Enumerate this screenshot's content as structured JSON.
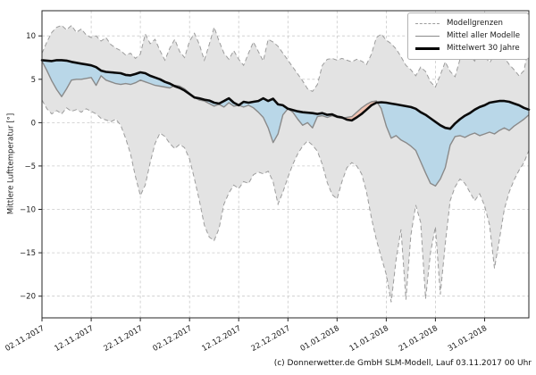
{
  "caption": "(c) Donnerwetter.de GmbH SLM-Modell, Lauf 03.11.2017 00 Uhr",
  "chart_data": {
    "type": "line",
    "title": "",
    "xlabel": "",
    "ylabel": "Mittlere Lufttemperatur [°]",
    "ylim": [
      -22.5,
      12.9
    ],
    "grid": true,
    "legend": {
      "position": "top-right",
      "entries": [
        {
          "label": "Modellgrenzen",
          "style": "dashed",
          "color": "#9c9c9c"
        },
        {
          "label": "Mittel aller Modelle",
          "style": "solid",
          "color": "#8a8a8a"
        },
        {
          "label": "Mittelwert 30 Jahre",
          "style": "bold",
          "color": "#000000"
        }
      ]
    },
    "colors": {
      "band_fill": "#e3e3e3",
      "band_edge": "#9c9c9c",
      "colder_fill": "#b9d7e8",
      "warmer_fill": "#f2c3b2",
      "mean_line": "#8a8a8a",
      "normal_line": "#0a0a0a",
      "grid": "#c9c9c9",
      "frame": "#262626",
      "text": "#1a1a1a"
    },
    "yticks": [
      {
        "value": 10,
        "label": "10"
      },
      {
        "value": 5,
        "label": "5"
      },
      {
        "value": 0,
        "label": "0"
      },
      {
        "value": -5,
        "label": "−5"
      },
      {
        "value": -10,
        "label": "−10"
      },
      {
        "value": -15,
        "label": "−15"
      },
      {
        "value": -20,
        "label": "−20"
      }
    ],
    "xticks": [
      {
        "day": 0,
        "label": "02.11.2017"
      },
      {
        "day": 10,
        "label": "12.11.2017"
      },
      {
        "day": 20,
        "label": "22.11.2017"
      },
      {
        "day": 30,
        "label": "02.12.2017"
      },
      {
        "day": 40,
        "label": "12.12.2017"
      },
      {
        "day": 50,
        "label": "22.12.2017"
      },
      {
        "day": 60,
        "label": "01.01.2018"
      },
      {
        "day": 70,
        "label": "11.01.2018"
      },
      {
        "day": 80,
        "label": "21.01.2018"
      },
      {
        "day": 90,
        "label": "31.01.2018"
      }
    ],
    "series": [
      {
        "name": "Modellgrenzen (oberes Limit)",
        "values": [
          8.0,
          9.3,
          10.4,
          11.0,
          11.2,
          10.7,
          11.2,
          10.4,
          10.8,
          10.1,
          9.8,
          10.0,
          9.4,
          9.8,
          9.0,
          8.6,
          8.3,
          7.8,
          8.0,
          7.4,
          7.9,
          10.2,
          9.1,
          9.6,
          8.3,
          7.2,
          8.6,
          9.6,
          8.2,
          7.5,
          9.4,
          10.3,
          9.0,
          7.2,
          9.0,
          11.0,
          9.4,
          8.0,
          7.3,
          8.3,
          7.3,
          6.6,
          8.0,
          9.3,
          8.2,
          7.1,
          9.6,
          9.3,
          8.8,
          8.0,
          7.2,
          6.4,
          5.6,
          4.8,
          3.9,
          3.6,
          4.4,
          6.6,
          7.3,
          7.4,
          7.2,
          7.4,
          7.2,
          7.0,
          7.3,
          7.1,
          6.7,
          7.9,
          9.8,
          10.2,
          9.5,
          9.1,
          8.5,
          7.6,
          6.6,
          6.1,
          5.4,
          6.4,
          5.9,
          4.7,
          4.1,
          5.5,
          7.0,
          5.9,
          5.3,
          7.3,
          8.5,
          7.7,
          7.1,
          8.7,
          7.7,
          6.9,
          7.8,
          8.4,
          7.5,
          6.7,
          6.1,
          5.4,
          6.0,
          8.8
        ]
      },
      {
        "name": "Mittel aller Modelle",
        "values": [
          7.1,
          6.0,
          4.8,
          3.8,
          3.0,
          3.9,
          4.9,
          5.0,
          5.0,
          5.1,
          5.2,
          4.3,
          5.4,
          4.9,
          4.7,
          4.5,
          4.4,
          4.5,
          4.4,
          4.6,
          4.9,
          4.7,
          4.5,
          4.3,
          4.2,
          4.1,
          4.0,
          4.3,
          4.2,
          3.9,
          3.4,
          2.9,
          2.6,
          2.5,
          2.2,
          1.9,
          2.1,
          1.8,
          2.3,
          1.9,
          2.0,
          1.8,
          2.0,
          1.7,
          1.2,
          0.6,
          -0.6,
          -2.3,
          -1.3,
          0.9,
          1.6,
          1.2,
          0.4,
          -0.3,
          0.0,
          -0.6,
          0.7,
          0.8,
          0.6,
          0.8,
          0.6,
          0.5,
          0.6,
          0.7,
          1.2,
          1.7,
          2.1,
          2.4,
          2.5,
          1.6,
          -0.4,
          -1.8,
          -1.5,
          -2.0,
          -2.3,
          -2.7,
          -3.2,
          -4.5,
          -5.8,
          -7.0,
          -7.3,
          -6.5,
          -5.2,
          -2.6,
          -1.6,
          -1.5,
          -1.7,
          -1.4,
          -1.2,
          -1.5,
          -1.3,
          -1.1,
          -1.3,
          -0.9,
          -0.6,
          -0.9,
          -0.4,
          0.0,
          0.4,
          0.9
        ]
      },
      {
        "name": "Mittelwert 30 Jahre",
        "values": [
          7.2,
          7.15,
          7.1,
          7.2,
          7.2,
          7.15,
          7.0,
          6.9,
          6.8,
          6.7,
          6.6,
          6.4,
          6.0,
          5.85,
          5.8,
          5.75,
          5.7,
          5.5,
          5.45,
          5.6,
          5.8,
          5.7,
          5.4,
          5.2,
          5.0,
          4.7,
          4.5,
          4.2,
          4.0,
          3.7,
          3.3,
          2.9,
          2.8,
          2.65,
          2.55,
          2.3,
          2.2,
          2.5,
          2.8,
          2.3,
          2.0,
          2.4,
          2.3,
          2.4,
          2.5,
          2.8,
          2.5,
          2.75,
          2.1,
          2.0,
          1.6,
          1.45,
          1.3,
          1.2,
          1.15,
          1.1,
          1.0,
          1.1,
          0.9,
          0.95,
          0.7,
          0.6,
          0.35,
          0.25,
          0.6,
          1.0,
          1.5,
          2.0,
          2.3,
          2.35,
          2.3,
          2.2,
          2.1,
          2.0,
          1.9,
          1.8,
          1.6,
          1.2,
          0.9,
          0.5,
          0.1,
          -0.3,
          -0.6,
          -0.7,
          -0.1,
          0.4,
          0.8,
          1.1,
          1.5,
          1.8,
          2.0,
          2.3,
          2.4,
          2.5,
          2.5,
          2.4,
          2.2,
          2.0,
          1.7,
          1.5
        ]
      },
      {
        "name": "Modellgrenzen (unteres Limit)",
        "values": [
          2.6,
          1.6,
          1.0,
          1.4,
          1.0,
          1.7,
          1.3,
          1.5,
          1.2,
          1.6,
          1.3,
          1.0,
          0.5,
          0.3,
          0.1,
          0.4,
          -0.3,
          -1.8,
          -3.6,
          -6.2,
          -8.4,
          -7.2,
          -4.6,
          -2.4,
          -1.2,
          -1.6,
          -2.4,
          -3.0,
          -2.5,
          -2.9,
          -4.2,
          -6.5,
          -9.0,
          -11.8,
          -13.2,
          -13.6,
          -12.2,
          -9.4,
          -8.1,
          -7.2,
          -7.6,
          -6.8,
          -7.0,
          -6.0,
          -5.7,
          -5.9,
          -5.6,
          -6.8,
          -9.4,
          -8.0,
          -6.3,
          -4.8,
          -3.6,
          -2.7,
          -2.1,
          -2.6,
          -3.3,
          -4.8,
          -6.9,
          -8.3,
          -8.8,
          -6.8,
          -5.2,
          -4.6,
          -5.0,
          -5.9,
          -8.0,
          -11.0,
          -13.5,
          -15.5,
          -17.5,
          -20.7,
          -15.8,
          -12.3,
          -20.4,
          -13.0,
          -9.5,
          -11.5,
          -20.3,
          -15.0,
          -12.0,
          -19.8,
          -14.0,
          -9.0,
          -7.4,
          -6.5,
          -7.0,
          -8.0,
          -9.0,
          -8.2,
          -9.6,
          -11.8,
          -16.8,
          -13.5,
          -10.0,
          -8.0,
          -6.6,
          -5.5,
          -4.6,
          -3.2
        ]
      }
    ]
  }
}
